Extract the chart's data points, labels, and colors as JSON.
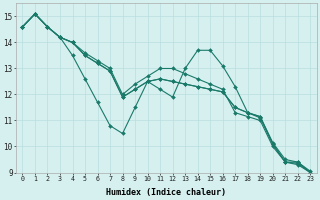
{
  "background_color": "#d6f0f0",
  "grid_color": "#b8dede",
  "line_color": "#1a7a6a",
  "xlabel": "Humidex (Indice chaleur)",
  "xlim_min": -0.5,
  "xlim_max": 23.5,
  "ylim_min": 9.0,
  "ylim_max": 15.5,
  "yticks": [
    9,
    10,
    11,
    12,
    13,
    14,
    15
  ],
  "xticks": [
    0,
    1,
    2,
    3,
    4,
    5,
    6,
    7,
    8,
    9,
    10,
    11,
    12,
    13,
    14,
    15,
    16,
    17,
    18,
    19,
    20,
    21,
    22,
    23
  ],
  "series": [
    [
      14.6,
      15.1,
      14.6,
      14.2,
      13.5,
      12.6,
      11.7,
      10.8,
      10.5,
      11.5,
      12.5,
      12.2,
      11.9,
      13.0,
      13.7,
      13.7,
      13.1,
      12.3,
      11.3,
      11.15,
      10.1,
      9.4,
      9.4,
      9.0
    ],
    [
      14.6,
      15.1,
      14.6,
      14.2,
      14.0,
      13.5,
      13.2,
      12.9,
      11.9,
      12.2,
      12.5,
      12.6,
      12.5,
      12.4,
      12.3,
      12.2,
      12.1,
      11.5,
      11.3,
      11.15,
      10.15,
      9.5,
      9.4,
      9.05
    ],
    [
      14.6,
      15.1,
      14.6,
      14.2,
      14.0,
      13.5,
      13.2,
      12.9,
      11.9,
      12.2,
      12.5,
      12.6,
      12.5,
      12.4,
      12.3,
      12.2,
      12.1,
      11.5,
      11.3,
      11.1,
      10.1,
      9.4,
      9.35,
      9.0
    ],
    [
      14.6,
      15.1,
      14.6,
      14.2,
      14.0,
      13.6,
      13.3,
      13.0,
      12.0,
      12.4,
      12.7,
      13.0,
      13.0,
      12.8,
      12.6,
      12.4,
      12.2,
      11.3,
      11.15,
      11.0,
      10.0,
      9.4,
      9.3,
      9.0
    ]
  ]
}
